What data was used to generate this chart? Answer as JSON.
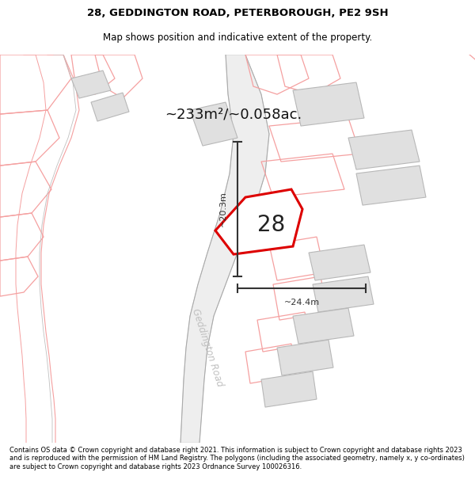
{
  "title_line1": "28, GEDDINGTON ROAD, PETERBOROUGH, PE2 9SH",
  "title_line2": "Map shows position and indicative extent of the property.",
  "footer_text": "Contains OS data © Crown copyright and database right 2021. This information is subject to Crown copyright and database rights 2023 and is reproduced with the permission of HM Land Registry. The polygons (including the associated geometry, namely x, y co-ordinates) are subject to Crown copyright and database rights 2023 Ordnance Survey 100026316.",
  "area_label": "~233m²/~0.058ac.",
  "number_label": "28",
  "dim_vertical": "~20.3m",
  "dim_horizontal": "~24.4m",
  "road_label": "Geddington Road",
  "map_bg": "#ffffff",
  "plot_border_color": "#dd0000",
  "building_color": "#e0e0e0",
  "building_edge_color": "#b8b8b8",
  "pink_line_color": "#f5a0a0",
  "gray_line_color": "#c0c0c0",
  "background_color": "#ffffff",
  "dim_line_color": "#333333"
}
